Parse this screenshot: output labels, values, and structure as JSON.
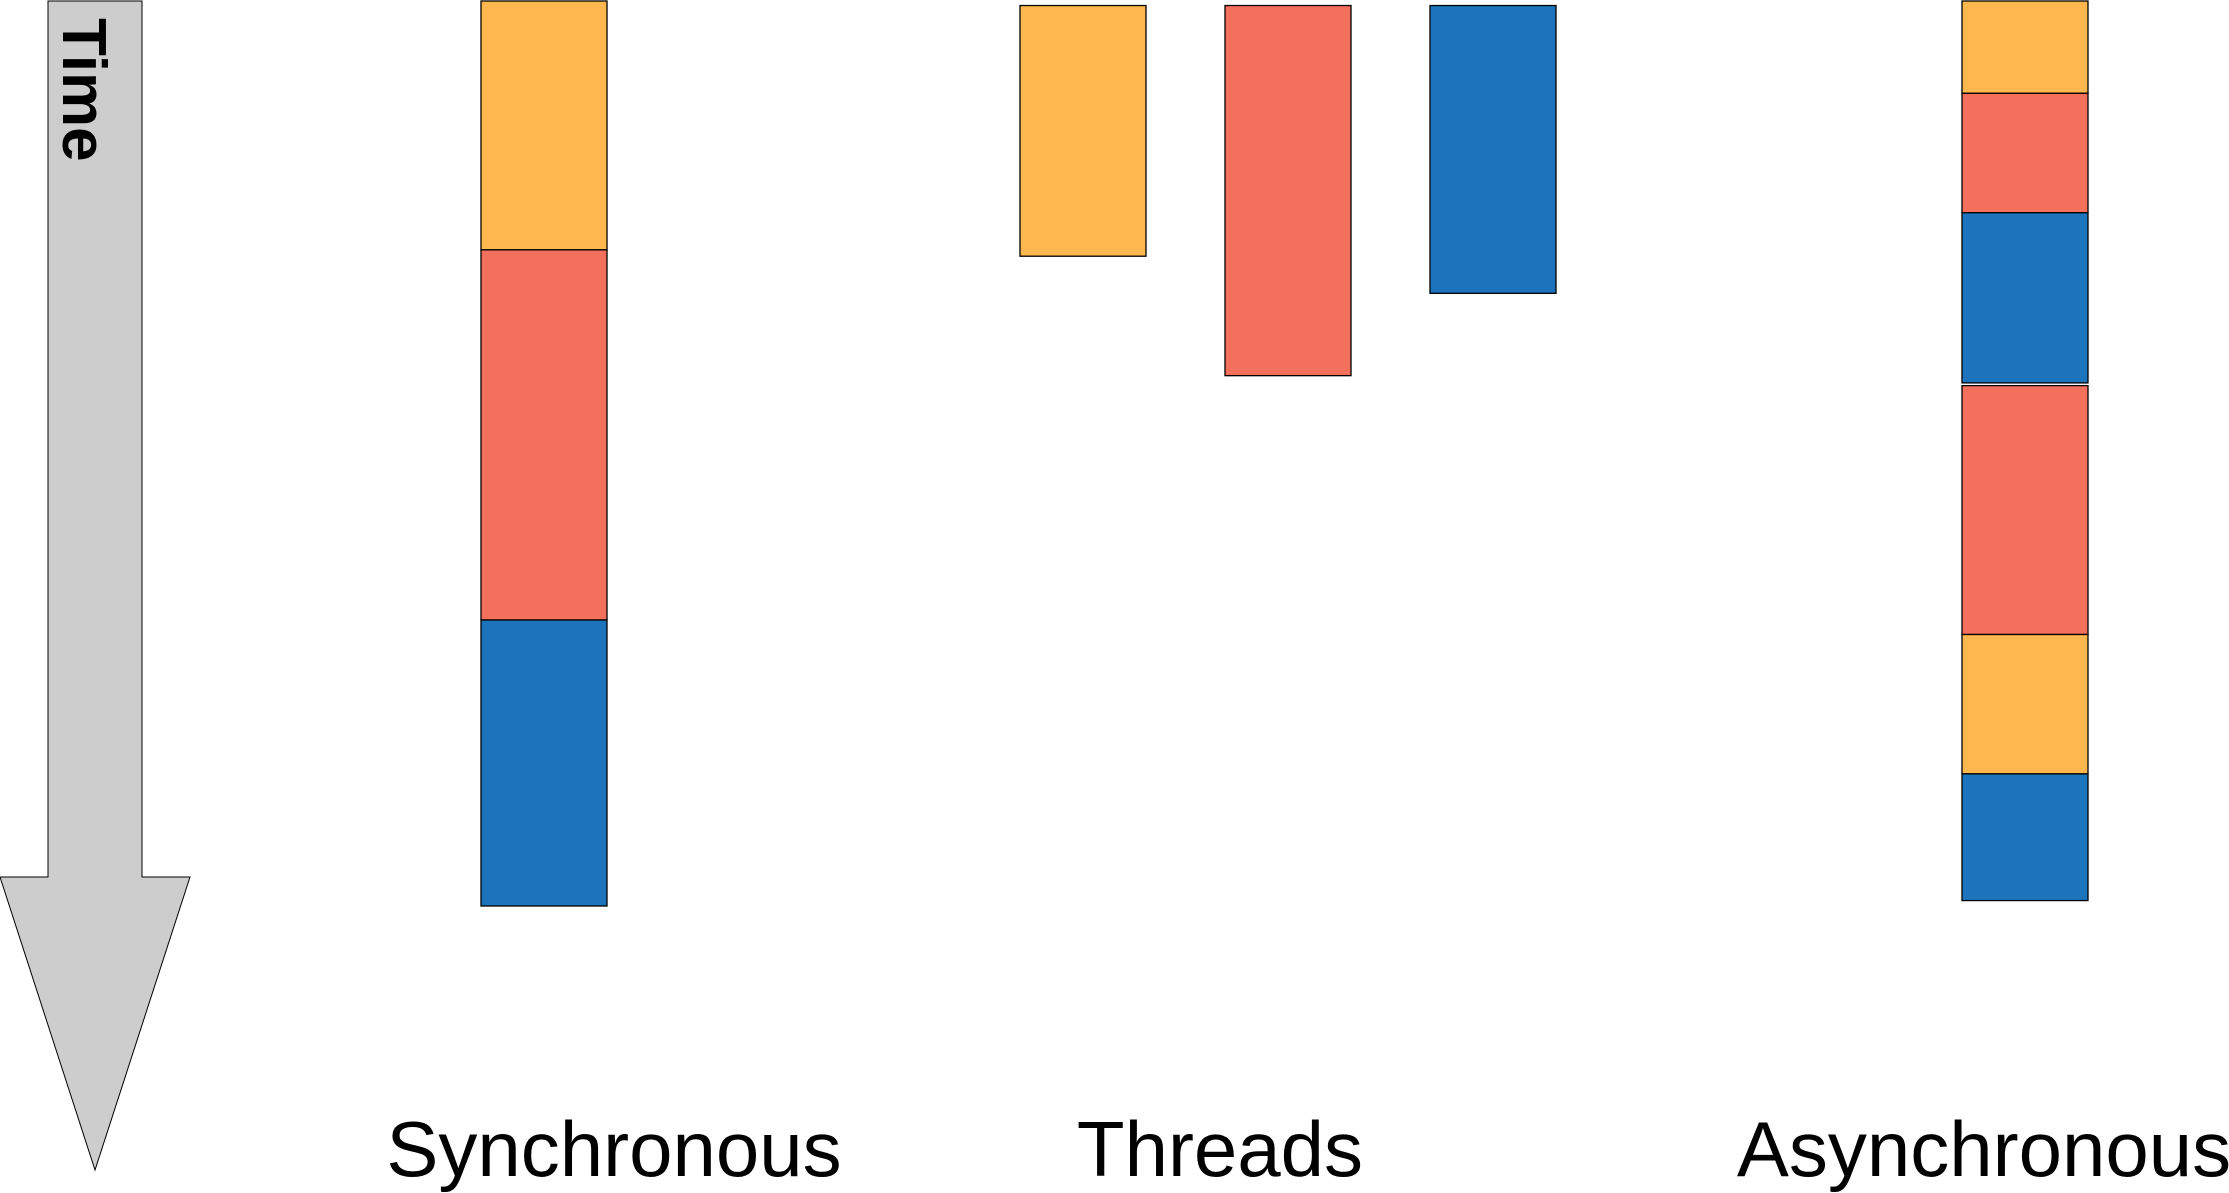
{
  "colors": {
    "task_a": "#FDB74F",
    "task_b": "#F2705C",
    "task_c": "#1C75BC",
    "time_arrow": "#CDCDCD",
    "outline": "#000000"
  },
  "time_axis": {
    "label": "Time"
  },
  "columns": [
    {
      "id": "synchronous",
      "label": "Synchronous",
      "tasks": [
        {
          "task": "task_a",
          "start": 0.0,
          "end": 0.275
        },
        {
          "task": "task_b",
          "start": 0.275,
          "end": 0.684
        },
        {
          "task": "task_c",
          "start": 0.684,
          "end": 1.0
        }
      ]
    },
    {
      "id": "threads",
      "label": "Threads",
      "tasks": [
        {
          "task": "task_a",
          "start": 0.005,
          "end": 0.282,
          "lane": 0
        },
        {
          "task": "task_b",
          "start": 0.005,
          "end": 0.414,
          "lane": 1
        },
        {
          "task": "task_c",
          "start": 0.005,
          "end": 0.323,
          "lane": 2
        }
      ]
    },
    {
      "id": "asynchronous",
      "label": "Asynchronous",
      "tasks": [
        {
          "task": "task_a",
          "start": 0.0,
          "end": 0.102
        },
        {
          "task": "task_b",
          "start": 0.102,
          "end": 0.234
        },
        {
          "task": "task_c",
          "start": 0.234,
          "end": 0.422
        },
        {
          "task": "task_b",
          "start": 0.425,
          "end": 0.7
        },
        {
          "task": "task_a",
          "start": 0.7,
          "end": 0.854
        },
        {
          "task": "task_c",
          "start": 0.854,
          "end": 0.994
        }
      ]
    }
  ]
}
